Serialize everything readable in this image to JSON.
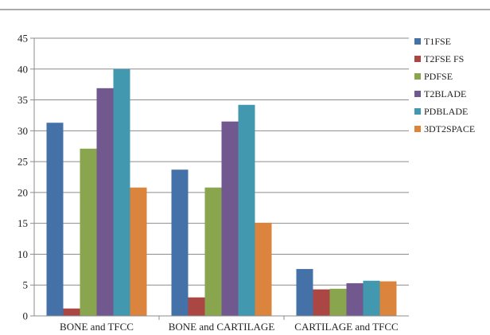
{
  "chart_data": {
    "type": "bar",
    "title": "",
    "xlabel": "",
    "ylabel": "",
    "categories": [
      "BONE and  TFCC",
      "BONE and CARTILAGE",
      "CARTILAGE and TFCC"
    ],
    "ylim": [
      0,
      45
    ],
    "yticks": [
      0,
      5,
      10,
      15,
      20,
      25,
      30,
      35,
      40,
      45
    ],
    "grid": true,
    "legend_position": "right",
    "series": [
      {
        "name": "T1FSE",
        "color": "#4472A8",
        "values": [
          31.3,
          23.7,
          7.6
        ]
      },
      {
        "name": "T2FSE FS",
        "color": "#AA4643",
        "values": [
          1.2,
          3.0,
          4.3
        ]
      },
      {
        "name": "PDFSE",
        "color": "#89A54E",
        "values": [
          27.1,
          20.8,
          4.4
        ]
      },
      {
        "name": "T2BLADE",
        "color": "#71588F",
        "values": [
          36.9,
          31.5,
          5.3
        ]
      },
      {
        "name": "PDBLADE",
        "color": "#4198AF",
        "values": [
          40.0,
          34.2,
          5.7
        ]
      },
      {
        "name": "3DT2SPACE",
        "color": "#DB843D",
        "values": [
          20.8,
          15.1,
          5.6
        ]
      }
    ]
  }
}
